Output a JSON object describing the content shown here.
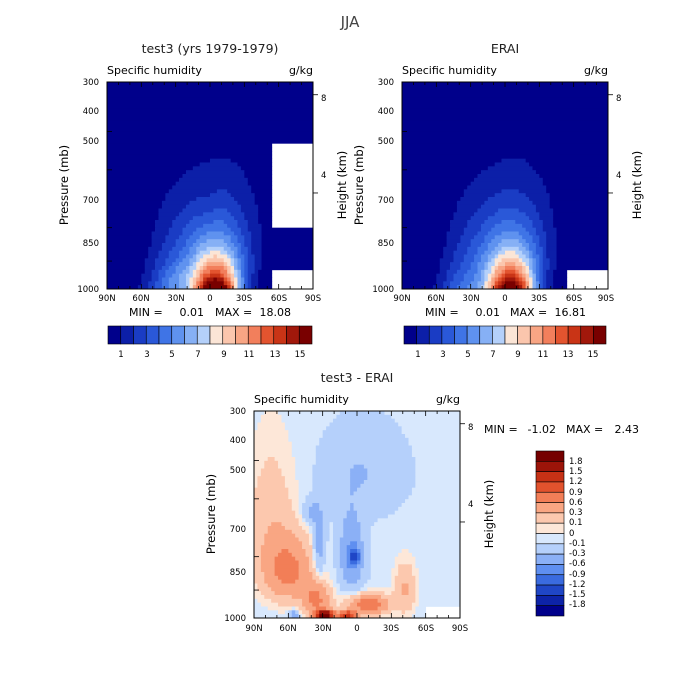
{
  "figure": {
    "title": "JJA"
  },
  "colors": {
    "humidity_levels": [
      "#00008b",
      "#0c1fa8",
      "#1a3cc4",
      "#2a58d8",
      "#3f74e6",
      "#5f92ef",
      "#86b0f5",
      "#b4d0fa",
      "#fbe5d6",
      "#fbc6ad",
      "#f8a584",
      "#f27f5c",
      "#e3542f",
      "#c93416",
      "#a1180b",
      "#790000"
    ],
    "diff_levels": [
      "#00008b",
      "#0d23a8",
      "#1f46c6",
      "#3a6bdf",
      "#5f8ff0",
      "#8bb0f6",
      "#b5d0fb",
      "#d8e8fd",
      "#fde7d8",
      "#fcc8ae",
      "#f9a683",
      "#f27e57",
      "#e2522d",
      "#c63115",
      "#9c1409",
      "#750000"
    ]
  },
  "chart_data": [
    {
      "id": "left",
      "type": "heatmap",
      "title": "test3 (yrs 1979-1979)",
      "subtitle_left": "Specific humidity",
      "subtitle_right": "g/kg",
      "xlabel": "",
      "ylabel": "Pressure (mb)",
      "y2label": "Height (km)",
      "x_ticks": [
        "90N",
        "60N",
        "30N",
        "0",
        "30S",
        "60S",
        "90S"
      ],
      "y_ticks": [
        "300",
        "400",
        "500",
        "700",
        "850",
        "1000"
      ],
      "y2_ticks": [
        "8",
        "4"
      ],
      "stats": {
        "min_label": "MIN =",
        "min": "0.01",
        "max_label": "MAX =",
        "max": "18.08"
      },
      "colorbar_labels": [
        "1",
        "3",
        "5",
        "7",
        "9",
        "11",
        "13",
        "15"
      ],
      "colorbar_levels": [
        1,
        2,
        3,
        4,
        5,
        6,
        7,
        8,
        9,
        10,
        11,
        12,
        13,
        14,
        15
      ],
      "approx_peak": {
        "lat": -5,
        "pressure_mb": 975,
        "value": 18.08
      }
    },
    {
      "id": "right",
      "type": "heatmap",
      "title": "ERAI",
      "subtitle_left": "Specific humidity",
      "subtitle_right": "g/kg",
      "xlabel": "",
      "ylabel": "Pressure (mb)",
      "y2label": "Height (km)",
      "x_ticks": [
        "90N",
        "60N",
        "30N",
        "0",
        "30S",
        "60S",
        "90S"
      ],
      "y_ticks": [
        "300",
        "400",
        "500",
        "700",
        "850",
        "1000"
      ],
      "y2_ticks": [
        "8",
        "4"
      ],
      "stats": {
        "min_label": "MIN =",
        "min": "0.01",
        "max_label": "MAX =",
        "max": "16.81"
      },
      "colorbar_labels": [
        "1",
        "3",
        "5",
        "7",
        "9",
        "11",
        "13",
        "15"
      ],
      "colorbar_levels": [
        1,
        2,
        3,
        4,
        5,
        6,
        7,
        8,
        9,
        10,
        11,
        12,
        13,
        14,
        15
      ],
      "approx_peak": {
        "lat": -5,
        "pressure_mb": 975,
        "value": 16.81
      }
    },
    {
      "id": "diff",
      "type": "heatmap",
      "title": "test3 - ERAI",
      "subtitle_left": "Specific humidity",
      "subtitle_right": "g/kg",
      "xlabel": "",
      "ylabel": "Pressure (mb)",
      "y2label": "Height (km)",
      "x_ticks": [
        "90N",
        "60N",
        "30N",
        "0",
        "30S",
        "60S",
        "90S"
      ],
      "y_ticks": [
        "300",
        "400",
        "500",
        "700",
        "850",
        "1000"
      ],
      "y2_ticks": [
        "8",
        "4"
      ],
      "stats": {
        "min_label": "MIN =",
        "min": "-1.02",
        "max_label": "MAX =",
        "max": "2.43"
      },
      "colorbar_labels": [
        "1.8",
        "1.5",
        "1.2",
        "0.9",
        "0.6",
        "0.3",
        "0.1",
        "0",
        "-0.1",
        "-0.3",
        "-0.6",
        "-0.9",
        "-1.2",
        "-1.5",
        "-1.8"
      ],
      "colorbar_levels": [
        -1.8,
        -1.5,
        -1.2,
        -0.9,
        -0.6,
        -0.3,
        -0.1,
        0,
        0.1,
        0.3,
        0.6,
        0.9,
        1.2,
        1.5,
        1.8
      ]
    }
  ]
}
